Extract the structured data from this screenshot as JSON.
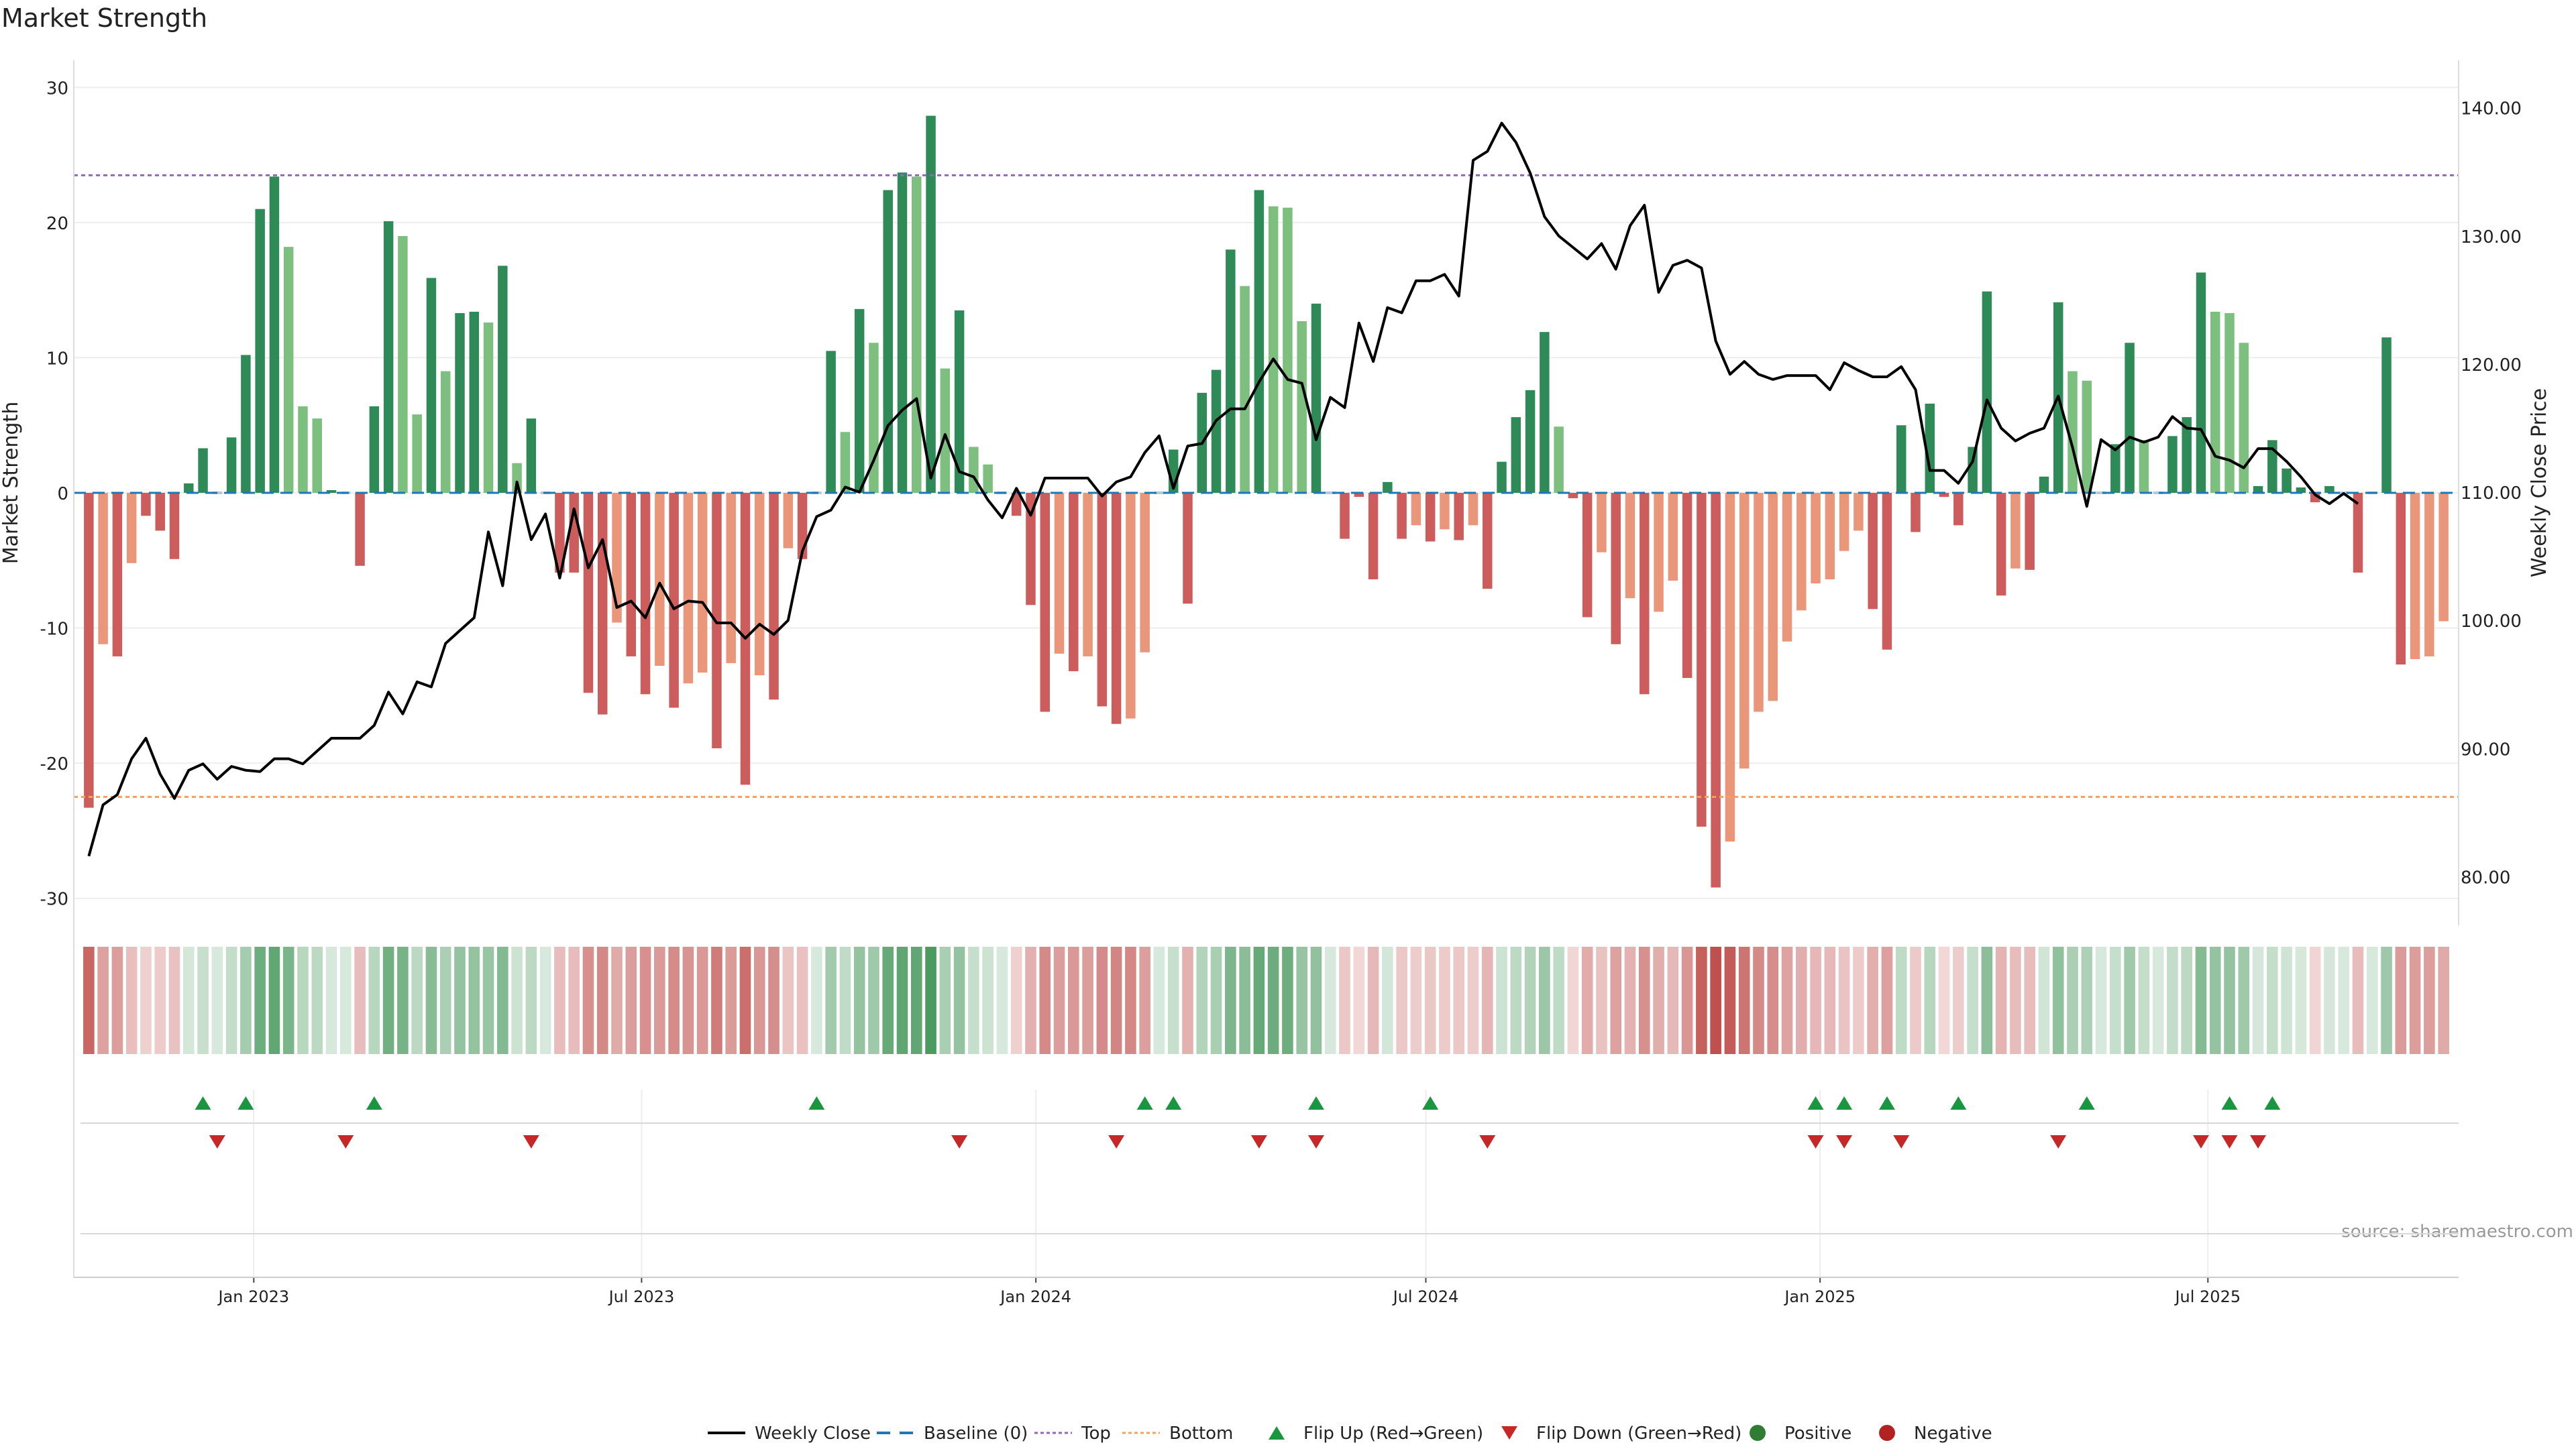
{
  "chart_data": {
    "type": "bar",
    "title": "Market Strength",
    "ylabel_left": "Market Strength",
    "ylabel_right": "Weekly Close Price",
    "ylim_left": [
      -32,
      32
    ],
    "ylim_right": [
      76.2,
      143.7
    ],
    "yticks_left": [
      30,
      20,
      10,
      0,
      -10,
      -20,
      -30
    ],
    "yticks_right": [
      "140.00",
      "130.00",
      "120.00",
      "110.00",
      "100.00",
      "90.00",
      "80.00"
    ],
    "x_start": "2022-10-09",
    "x_end": "2025-10-26",
    "x_ticks": [
      {
        "label": "Jan 2023",
        "date": "2023-01-01"
      },
      {
        "label": "Jul 2023",
        "date": "2023-07-01"
      },
      {
        "label": "Jan 2024",
        "date": "2024-01-01"
      },
      {
        "label": "Jul 2024",
        "date": "2024-07-01"
      },
      {
        "label": "Jan 2025",
        "date": "2025-01-01"
      },
      {
        "label": "Jul 2025",
        "date": "2025-07-01"
      }
    ],
    "reference_lines": {
      "top": 23.5,
      "bottom": -22.5,
      "baseline": 0
    },
    "strength": [
      -23.3,
      -11.2,
      -12.1,
      -5.2,
      -1.7,
      -2.8,
      -4.9,
      0.7,
      3.3,
      0,
      4.1,
      10.2,
      21.0,
      23.4,
      18.2,
      6.4,
      5.5,
      0.2,
      0,
      -5.4,
      6.4,
      20.1,
      19.0,
      5.8,
      15.9,
      9.0,
      13.3,
      13.4,
      12.6,
      16.8,
      2.2,
      5.5,
      0,
      -5.9,
      -5.9,
      -14.8,
      -16.4,
      -9.6,
      -12.1,
      -14.9,
      -12.8,
      -15.9,
      -14.1,
      -13.3,
      -18.9,
      -12.6,
      -21.6,
      -13.5,
      -15.3,
      -4.1,
      -4.9,
      0,
      10.5,
      4.5,
      13.6,
      11.1,
      22.4,
      23.7,
      23.4,
      27.9,
      9.2,
      13.5,
      3.4,
      2.1,
      0,
      -1.7,
      -8.3,
      -16.2,
      -11.9,
      -13.2,
      -12.1,
      -15.8,
      -17.1,
      -16.7,
      -11.8,
      0,
      3.2,
      -8.2,
      7.4,
      9.1,
      18.0,
      15.3,
      22.4,
      21.2,
      21.1,
      12.7,
      14.0,
      0,
      -3.4,
      -0.3,
      -6.4,
      0.8,
      -3.4,
      -2.4,
      -3.6,
      -2.7,
      -3.5,
      -2.4,
      -7.1,
      2.3,
      5.6,
      7.6,
      11.9,
      4.9,
      -0.4,
      -9.2,
      -4.4,
      -11.2,
      -7.8,
      -14.9,
      -8.8,
      -6.5,
      -13.7,
      -24.7,
      -29.2,
      -25.8,
      -20.4,
      -16.2,
      -15.4,
      -11.0,
      -8.7,
      -6.7,
      -6.4,
      -4.3,
      -2.8,
      -8.6,
      -11.6,
      5.0,
      -2.9,
      6.6,
      -0.3,
      -2.4,
      3.4,
      14.9,
      -7.6,
      -5.6,
      -5.7,
      1.2,
      14.1,
      9.0,
      8.3,
      0,
      3.6,
      11.1,
      3.9,
      0,
      4.2,
      5.6,
      16.3,
      13.4,
      13.3,
      11.1,
      0.5,
      3.9,
      1.8,
      0.4,
      -0.7,
      0.5,
      0,
      -5.9,
      0,
      11.5,
      -12.7,
      -12.3,
      -12.1,
      -9.5
    ],
    "close": [
      81.6,
      85.6,
      86.4,
      89.2,
      90.8,
      88.0,
      86.1,
      88.3,
      88.8,
      87.6,
      88.6,
      88.3,
      88.2,
      89.2,
      89.2,
      88.8,
      89.8,
      90.8,
      90.8,
      90.8,
      91.8,
      94.4,
      92.7,
      95.2,
      94.8,
      98.2,
      99.2,
      100.2,
      106.9,
      102.7,
      110.8,
      106.3,
      108.3,
      103.3,
      108.7,
      104.1,
      106.3,
      101.0,
      101.5,
      100.2,
      102.9,
      100.9,
      101.5,
      101.4,
      99.8,
      99.8,
      98.6,
      99.7,
      98.9,
      100.0,
      105.4,
      108.1,
      108.6,
      110.4,
      110.0,
      112.5,
      115.2,
      116.4,
      117.3,
      111.1,
      114.5,
      111.6,
      111.2,
      109.4,
      108.0,
      110.3,
      108.2,
      111.1,
      111.1,
      111.1,
      111.1,
      109.7,
      110.8,
      111.2,
      113.1,
      114.4,
      110.3,
      113.6,
      113.8,
      115.6,
      116.5,
      116.5,
      118.6,
      120.4,
      118.8,
      118.5,
      114.1,
      117.4,
      116.6,
      123.2,
      120.2,
      124.4,
      124.0,
      126.5,
      126.5,
      127.0,
      125.3,
      135.9,
      136.6,
      138.8,
      137.3,
      134.9,
      131.5,
      130.0,
      129.1,
      128.2,
      129.4,
      127.4,
      130.8,
      132.4,
      125.6,
      127.7,
      128.1,
      127.5,
      121.8,
      119.2,
      120.2,
      119.2,
      118.8,
      119.1,
      119.1,
      119.1,
      118.0,
      120.1,
      119.5,
      119.0,
      119.0,
      119.8,
      118.0,
      111.7,
      111.7,
      110.7,
      112.4,
      117.2,
      115.0,
      114.0,
      114.6,
      115.0,
      117.5,
      113.5,
      108.9,
      114.1,
      113.3,
      114.3,
      113.9,
      114.3,
      115.9,
      115.0,
      114.9,
      112.8,
      112.5,
      111.9,
      113.4,
      113.4,
      112.4,
      111.2,
      109.8,
      109.1,
      109.9,
      109.1
    ],
    "flip_up": [
      8,
      11,
      20,
      51,
      74,
      76,
      86,
      94,
      121,
      123,
      126,
      131,
      140,
      150,
      153
    ],
    "flip_down": [
      9,
      18,
      31,
      61,
      72,
      82,
      86,
      98,
      121,
      123,
      127,
      138,
      148,
      150,
      152
    ],
    "heat_colors": {
      "positive": "#4a9a5f",
      "negative": "#c0504d"
    },
    "source_text": "source: sharemaestro.com",
    "series_colors": {
      "close": "#000000",
      "baseline": "#1f77b4",
      "top": "#9467bd",
      "bottom": "#f4a261",
      "flip_up": "#1a9641",
      "flip_down": "#c62828",
      "bar_dark_green": "#2e8b57",
      "bar_light_green": "#7cbf7e",
      "bar_dark_red": "#cd5c5c",
      "bar_light_red": "#e9967a",
      "positive": "#2e7d32",
      "negative": "#b22222"
    },
    "legend": [
      {
        "label": "Weekly Close",
        "kind": "line",
        "color": "#000000"
      },
      {
        "label": "Baseline (0)",
        "kind": "dash",
        "color": "#1f77b4"
      },
      {
        "label": "Top",
        "kind": "dot",
        "color": "#9467bd"
      },
      {
        "label": "Bottom",
        "kind": "dot",
        "color": "#f4a261"
      },
      {
        "label": "Flip Up (Red→Green)",
        "kind": "tri-up",
        "color": "#1a9641"
      },
      {
        "label": "Flip Down (Green→Red)",
        "kind": "tri-down",
        "color": "#c62828"
      },
      {
        "label": "Positive",
        "kind": "circle",
        "color": "#2e7d32"
      },
      {
        "label": "Negative",
        "kind": "circle",
        "color": "#b22222"
      }
    ]
  }
}
